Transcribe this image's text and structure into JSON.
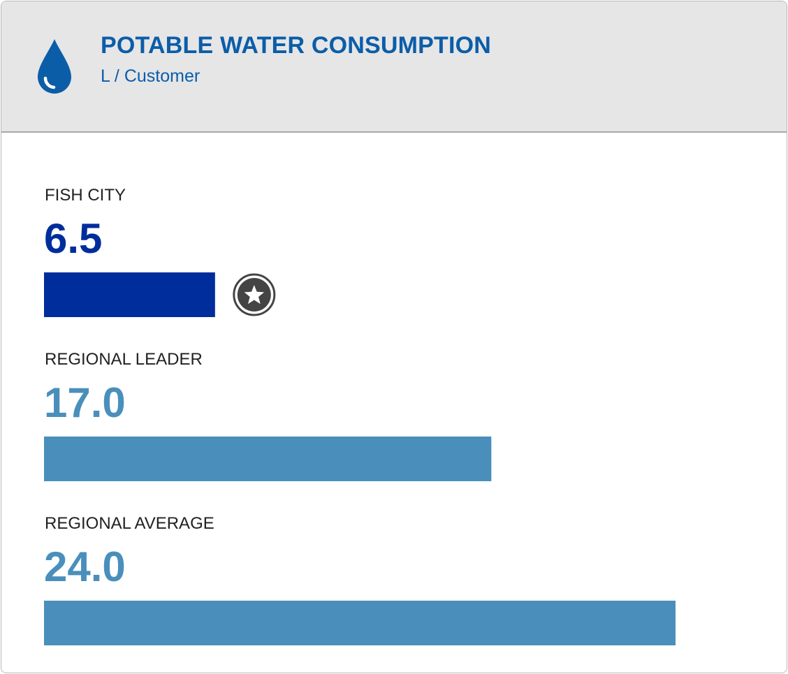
{
  "header": {
    "title": "POTABLE WATER CONSUMPTION",
    "subtitle": "L / Customer",
    "icon": "water-drop-icon"
  },
  "colors": {
    "header_text": "#0b5da8",
    "highlight_bar": "#002d9c",
    "comparison_bar": "#4a8fbb",
    "header_background": "#e6e6e7",
    "star_badge": "#444444"
  },
  "chart_data": {
    "type": "bar",
    "orientation": "horizontal",
    "title": "POTABLE WATER CONSUMPTION",
    "subtitle": "L / Customer",
    "categories": [
      "FISH CITY",
      "REGIONAL LEADER",
      "REGIONAL AVERAGE"
    ],
    "values": [
      6.5,
      17.0,
      24.0
    ],
    "value_labels": [
      "6.5",
      "17.0",
      "24.0"
    ],
    "highlighted": [
      true,
      false,
      false
    ],
    "badges": [
      "star-badge-icon",
      null,
      null
    ],
    "xlim": [
      0,
      24.0
    ],
    "grid": false,
    "legend": "none"
  }
}
